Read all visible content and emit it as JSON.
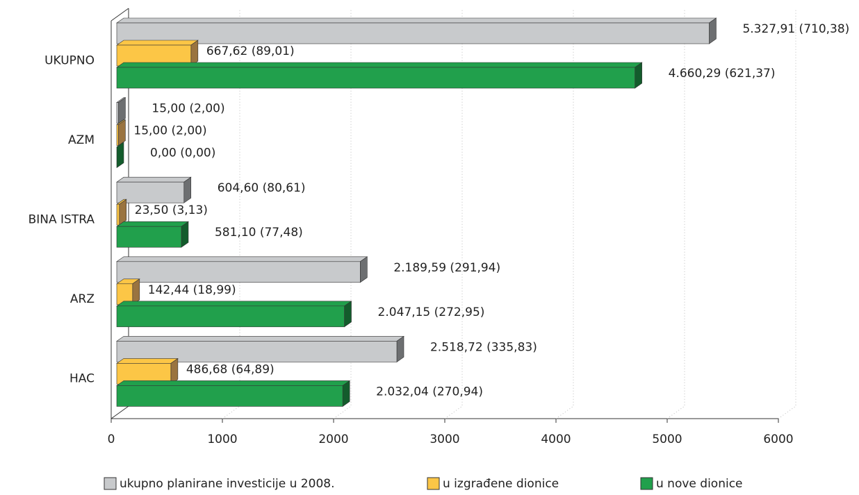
{
  "chart_data": {
    "type": "bar",
    "orientation": "horizontal",
    "categories": [
      "UKUPNO",
      "AZM",
      "BINA ISTRA",
      "ARZ",
      "HAC"
    ],
    "series": [
      {
        "name": "ukupno planirane investicije u 2008.",
        "color": "#c8cacc",
        "side_color": "#6d6f71",
        "values": [
          5327.91,
          15.0,
          604.6,
          2189.59,
          2518.72
        ],
        "value_labels": [
          "5.327,91 (710,38)",
          "15,00 (2,00)",
          "604,60 (80,61)",
          "2.189,59 (291,94)",
          "2.518,72 (335,83)"
        ]
      },
      {
        "name": "u izgrađene dionice",
        "color": "#fcc646",
        "side_color": "#9a7440",
        "values": [
          667.62,
          15.0,
          23.5,
          142.44,
          486.68
        ],
        "value_labels": [
          "667,62 (89,01)",
          "15,00 (2,00)",
          "23,50 (3,13)",
          "142,44 (18,99)",
          "486,68 (64,89)"
        ]
      },
      {
        "name": "u nove dionice",
        "color": "#21a04c",
        "side_color": "#135c2c",
        "values": [
          4660.29,
          0.0,
          581.1,
          2047.15,
          2032.04
        ],
        "value_labels": [
          "4.660,29 (621,37)",
          "0,00 (0,00)",
          "581,10 (77,48)",
          "2.047,15 (272,95)",
          "2.032,04 (270,94)"
        ]
      }
    ],
    "xlim": [
      0,
      6000
    ],
    "xticks": [
      0,
      1000,
      2000,
      3000,
      4000,
      5000,
      6000
    ],
    "grid": true,
    "legend": "bottom"
  }
}
